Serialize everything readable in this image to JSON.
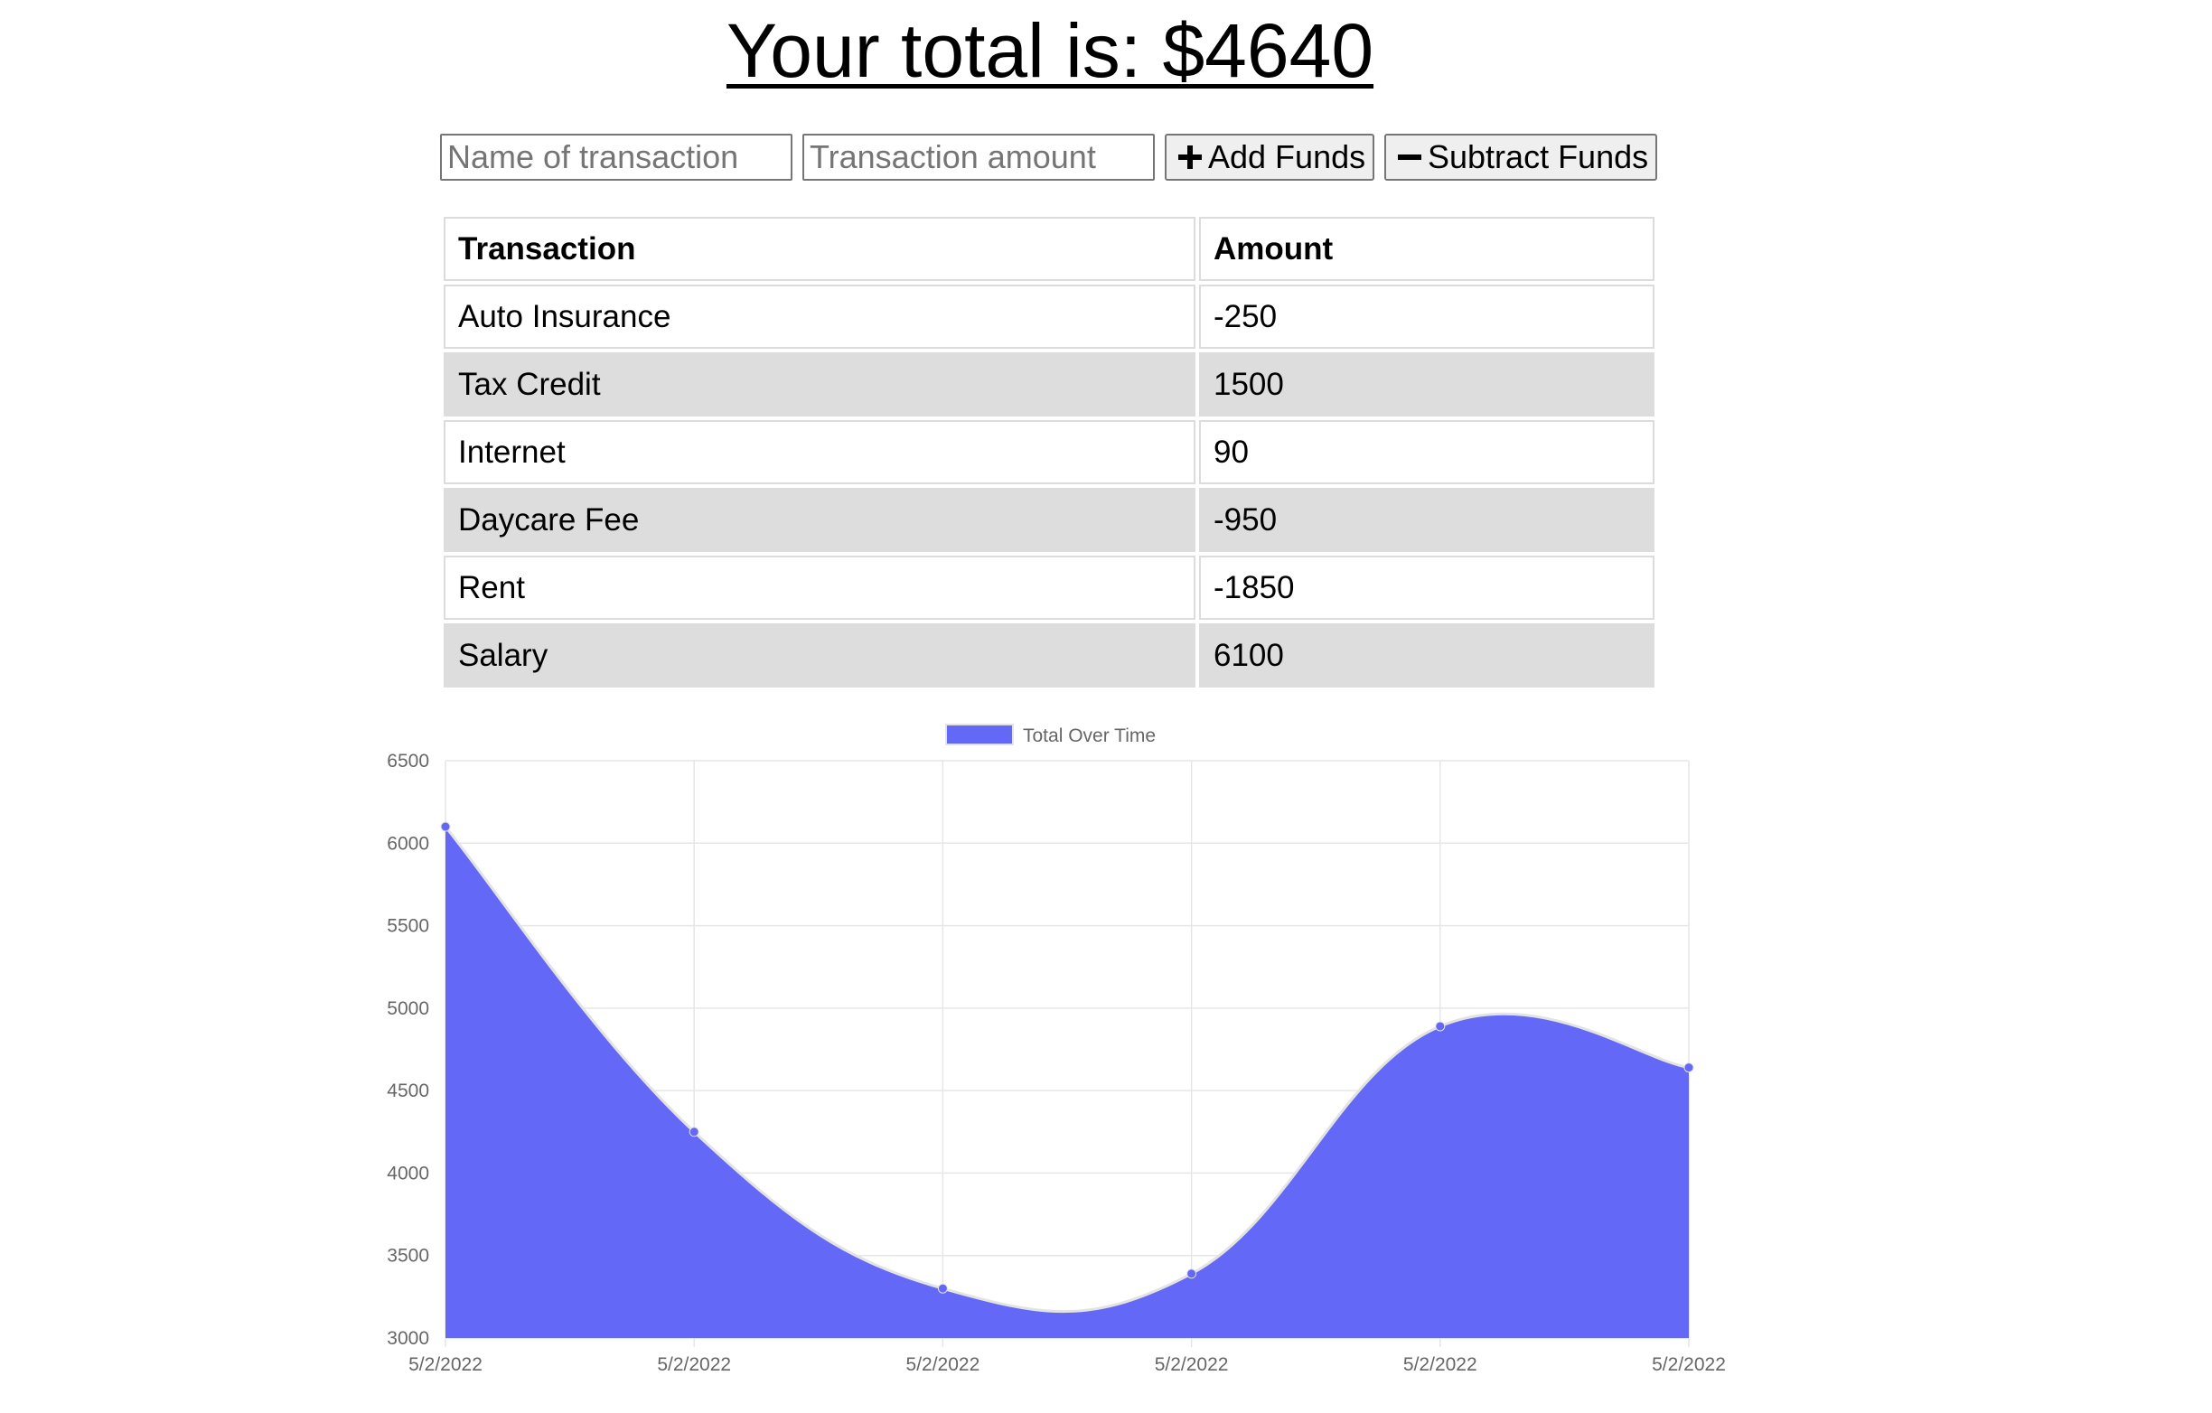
{
  "header": {
    "total_text": "Your total is: $4640"
  },
  "form": {
    "name_placeholder": "Name of transaction",
    "amount_placeholder": "Transaction amount",
    "add_label": "Add Funds",
    "subtract_label": "Subtract Funds",
    "add_icon": "plus-icon",
    "subtract_icon": "minus-icon"
  },
  "table": {
    "headers": [
      "Transaction",
      "Amount"
    ],
    "rows": [
      {
        "name": "Auto Insurance",
        "amount": "-250"
      },
      {
        "name": "Tax Credit",
        "amount": "1500"
      },
      {
        "name": "Internet",
        "amount": "90"
      },
      {
        "name": "Daycare Fee",
        "amount": "-950"
      },
      {
        "name": "Rent",
        "amount": "-1850"
      },
      {
        "name": "Salary",
        "amount": "6100"
      }
    ]
  },
  "chart_data": {
    "type": "area",
    "legend": "Total Over Time",
    "legend_position": "top",
    "x": [
      "5/2/2022",
      "5/2/2022",
      "5/2/2022",
      "5/2/2022",
      "5/2/2022",
      "5/2/2022"
    ],
    "series": [
      {
        "name": "Total Over Time",
        "values": [
          6100,
          4250,
          3300,
          3390,
          4890,
          4640
        ]
      }
    ],
    "ylim": [
      3000,
      6500
    ],
    "yticks": [
      3000,
      3500,
      4000,
      4500,
      5000,
      5500,
      6000,
      6500
    ],
    "grid": true,
    "colors": {
      "fill": "#6369f6",
      "line": "#e3e3e3",
      "point": "#6369f6",
      "grid": "#e6e6e6"
    }
  }
}
